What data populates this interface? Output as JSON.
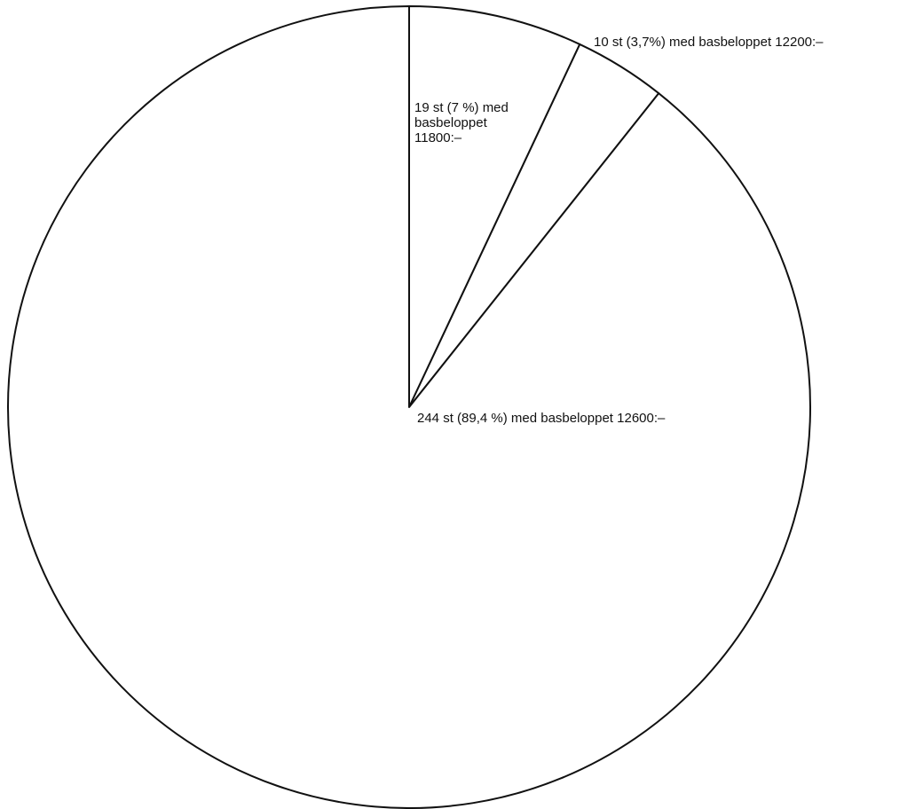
{
  "chart_data": {
    "type": "pie",
    "title": "",
    "slices": [
      {
        "count": 244,
        "percent": 89.4,
        "amount": 12600,
        "label_lines": [
          "244 st (89,4 %) med basbeloppet 12600:–"
        ]
      },
      {
        "count": 19,
        "percent": 7,
        "amount": 11800,
        "label_lines": [
          "19 st (7 %) med",
          "basbeloppet",
          "11800:–"
        ]
      },
      {
        "count": 10,
        "percent": 3.7,
        "amount": 12200,
        "label_lines": [
          "10 st (3,7%) med basbeloppet 12200:–"
        ]
      }
    ],
    "colors": {
      "fill": "#ffffff",
      "stroke": "#111111"
    }
  }
}
